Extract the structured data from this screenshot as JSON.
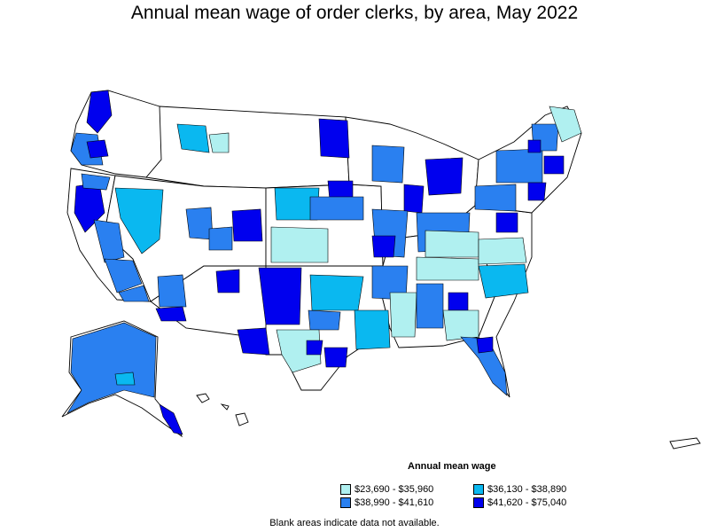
{
  "title": "Annual mean wage of order clerks, by area, May 2022",
  "legend": {
    "title": "Annual mean wage",
    "bins": [
      {
        "label": "$23,690 - $35,960",
        "color": "#b0f0f0"
      },
      {
        "label": "$36,130 - $38,890",
        "color": "#0ab8f0"
      },
      {
        "label": "$38,990 - $41,610",
        "color": "#2a80f0"
      },
      {
        "label": "$41,620 - $75,040",
        "color": "#0000ee"
      }
    ]
  },
  "note": "Blank areas indicate data not available.",
  "colors": {
    "no_data": "#ffffff",
    "border": "#000000"
  }
}
